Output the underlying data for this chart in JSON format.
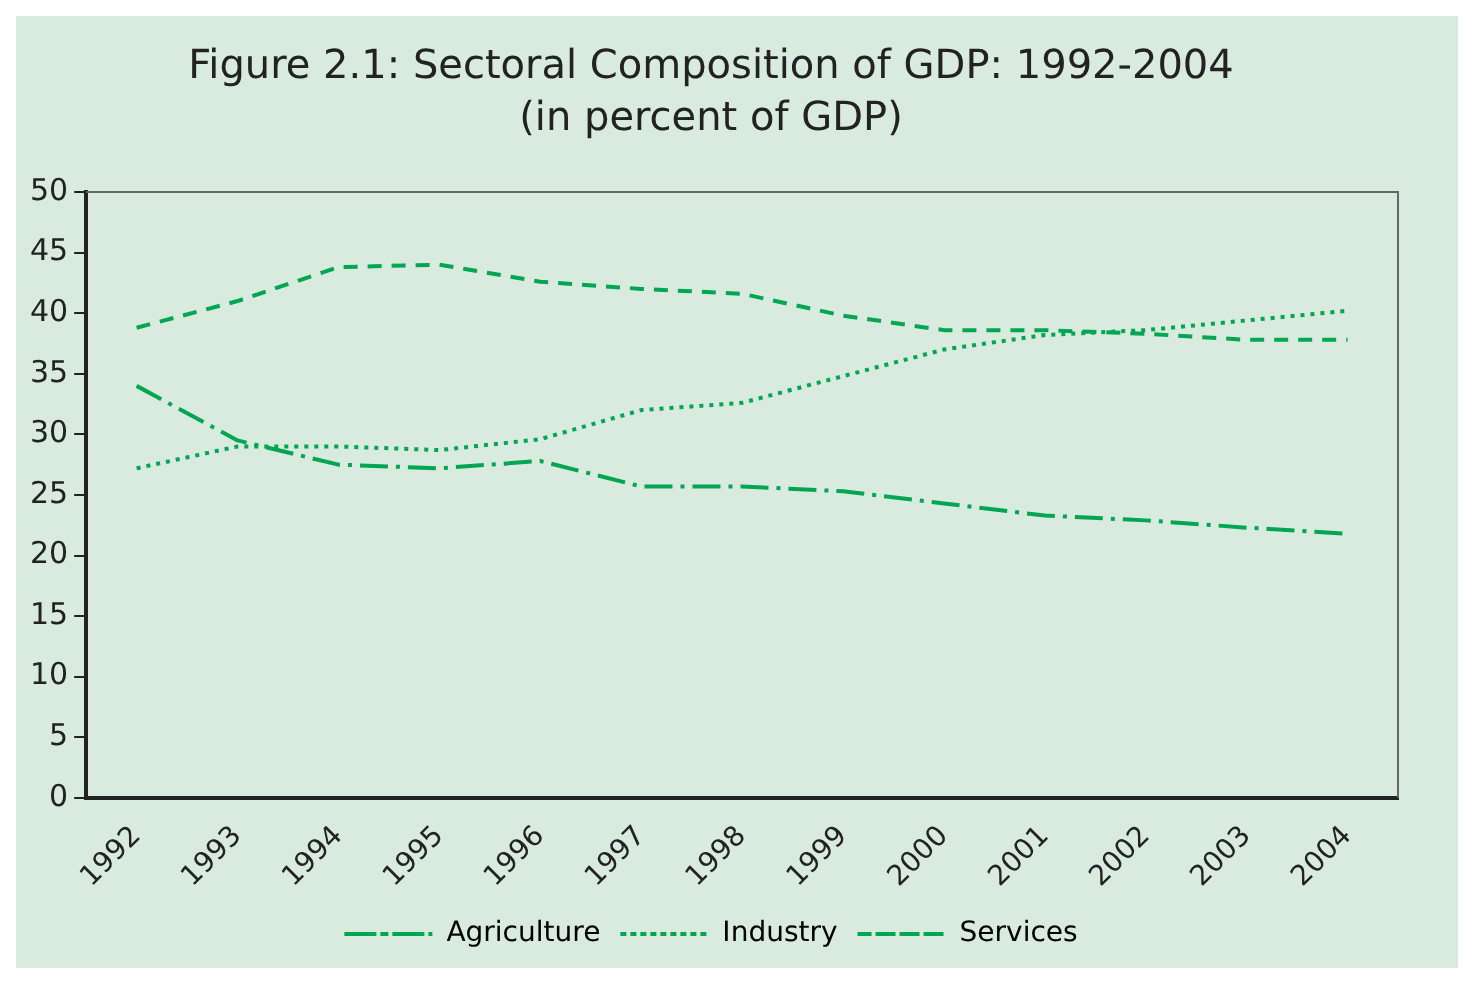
{
  "chart_data": {
    "type": "line",
    "title": "Figure 2.1: Sectoral Composition of GDP: 1992-2004",
    "subtitle": "(in percent of GDP)",
    "categories": [
      "1992",
      "1993",
      "1994",
      "1995",
      "1996",
      "1997",
      "1998",
      "1999",
      "2000",
      "2001",
      "2002",
      "2003",
      "2004"
    ],
    "series": [
      {
        "name": "Agriculture",
        "color": "#00a651",
        "line_style": "dashdot",
        "values": [
          34,
          29.5,
          27.5,
          27.2,
          27.8,
          25.7,
          25.7,
          25.3,
          24.3,
          23.3,
          22.9,
          22.3,
          21.8
        ]
      },
      {
        "name": "Industry",
        "color": "#00a651",
        "line_style": "dotted",
        "values": [
          27.2,
          29.0,
          29.0,
          28.7,
          29.6,
          32.0,
          32.6,
          34.8,
          37.0,
          38.2,
          38.6,
          39.4,
          40.2
        ]
      },
      {
        "name": "Services",
        "color": "#00a651",
        "line_style": "dashed",
        "values": [
          38.8,
          41.0,
          43.8,
          44.0,
          42.6,
          42.0,
          41.6,
          39.8,
          38.6,
          38.6,
          38.3,
          37.8,
          37.8
        ]
      }
    ],
    "ylim": [
      0,
      50
    ],
    "yticks": [
      0,
      5,
      10,
      15,
      20,
      25,
      30,
      35,
      40,
      45,
      50
    ],
    "grid": false,
    "legend": "bottom",
    "marker": "none"
  }
}
